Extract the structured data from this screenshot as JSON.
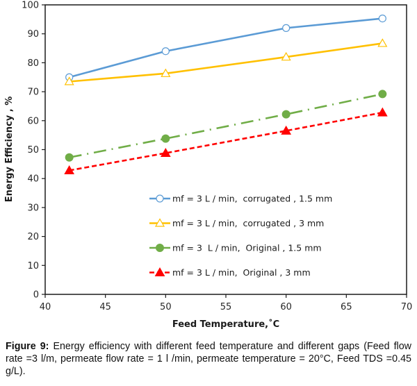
{
  "chart_data": {
    "type": "line",
    "title": "",
    "xlabel": "Feed Temperature,˚C",
    "ylabel": "Energy Efficiency , %",
    "xlim": [
      40,
      70
    ],
    "ylim": [
      0,
      100
    ],
    "xticks": [
      40,
      45,
      50,
      55,
      60,
      65,
      70
    ],
    "yticks": [
      0,
      10,
      20,
      30,
      40,
      50,
      60,
      70,
      80,
      90,
      100
    ],
    "grid": false,
    "legend_position": "lower-right",
    "x": [
      42,
      50,
      60,
      68
    ],
    "series": [
      {
        "name": "mf = 3 L / min,  corrugated , 1.5 mm",
        "values": [
          75.0,
          84.0,
          92.0,
          95.3
        ],
        "color": "#5b9bd5",
        "marker": "open-circle",
        "line": "solid"
      },
      {
        "name": "mf = 3 L / min,  corrugated , 3 mm",
        "values": [
          73.5,
          76.3,
          82.0,
          86.7
        ],
        "color": "#ffc000",
        "marker": "open-triangle",
        "line": "solid"
      },
      {
        "name": "mf = 3  L / min,  Original , 1.5 mm",
        "values": [
          47.3,
          53.8,
          62.2,
          69.2
        ],
        "color": "#70ad47",
        "marker": "filled-circle",
        "line": "dash-dot"
      },
      {
        "name": "mf = 3 L / min,  Original , 3 mm",
        "values": [
          42.8,
          48.8,
          56.5,
          62.8
        ],
        "color": "#ff0000",
        "marker": "filled-triangle",
        "line": "dashed"
      }
    ]
  },
  "caption": {
    "label": "Figure 9:",
    "text": " Energy efficiency with different feed temperature and different gaps (Feed flow rate =3 l/m, permeate flow rate = 1 l /min, permeate temperature = 20°C, Feed TDS =0.45 g/L)."
  }
}
